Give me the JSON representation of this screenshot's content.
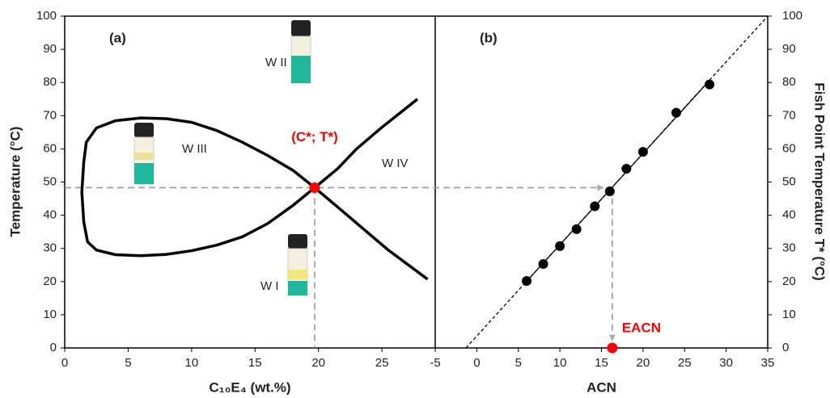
{
  "chart_data": [
    {
      "type": "line",
      "panel_label": "(a)",
      "x_label": "C₁₀E₄ (wt.%)",
      "y_label": "Temperature (°C)",
      "xlim": [
        0,
        29.2
      ],
      "ylim": [
        0,
        100
      ],
      "xticks": [
        0,
        5,
        10,
        15,
        20,
        25
      ],
      "yticks": [
        0,
        10,
        20,
        30,
        40,
        50,
        60,
        70,
        80,
        90,
        100
      ],
      "series": [
        {
          "color": "#000000",
          "x": [
            27.8,
            25,
            23,
            21.5,
            19.7,
            18,
            16,
            14,
            12,
            10,
            8,
            6,
            4,
            2.5,
            1.8,
            1.5,
            1.35,
            1.5,
            1.7,
            2.5,
            4,
            6,
            8,
            10,
            12,
            14,
            16,
            18,
            19.7,
            21.5,
            23.5,
            25.5,
            28.6
          ],
          "y": [
            75,
            66.5,
            60,
            54,
            48.3,
            43,
            37.5,
            33.5,
            31,
            29.3,
            28.2,
            27.8,
            28.1,
            29.5,
            32,
            38,
            47,
            56,
            62,
            66.3,
            68.5,
            69.3,
            69.1,
            68,
            65.5,
            62,
            58,
            53.5,
            48.3,
            42.5,
            36,
            29.5,
            20.7
          ]
        }
      ],
      "point": {
        "x": 19.7,
        "y": 48.3,
        "color": "#ff0000",
        "label": "(C*; T*)"
      },
      "annotations": [
        "W II",
        "W III",
        "W IV",
        "W I"
      ]
    },
    {
      "type": "scatter",
      "panel_label": "(b)",
      "x_label": "ACN",
      "y_label": "Fish Point Temperature T* (°C)",
      "xlim": [
        -5,
        35
      ],
      "ylim": [
        0,
        100
      ],
      "xticks": [
        -5,
        0,
        5,
        10,
        15,
        20,
        25,
        30,
        35
      ],
      "yticks": [
        0,
        10,
        20,
        30,
        40,
        50,
        60,
        70,
        80,
        90,
        100
      ],
      "series": [
        {
          "color": "#000000",
          "x": [
            6,
            8,
            10,
            12,
            14.2,
            16,
            18,
            20,
            24,
            28
          ],
          "y": [
            20.2,
            25.3,
            30.7,
            35.8,
            42.7,
            47.2,
            54,
            59.1,
            70.9,
            79.4
          ]
        }
      ],
      "fit": {
        "x": [
          6,
          28
        ],
        "y": [
          20.1,
          80.6
        ]
      },
      "extension": {
        "x": [
          -1.3,
          35
        ],
        "y": [
          0,
          100
        ]
      },
      "point": {
        "x": 16.3,
        "y": 0,
        "color": "#ff0000",
        "label": "EACN"
      }
    }
  ]
}
